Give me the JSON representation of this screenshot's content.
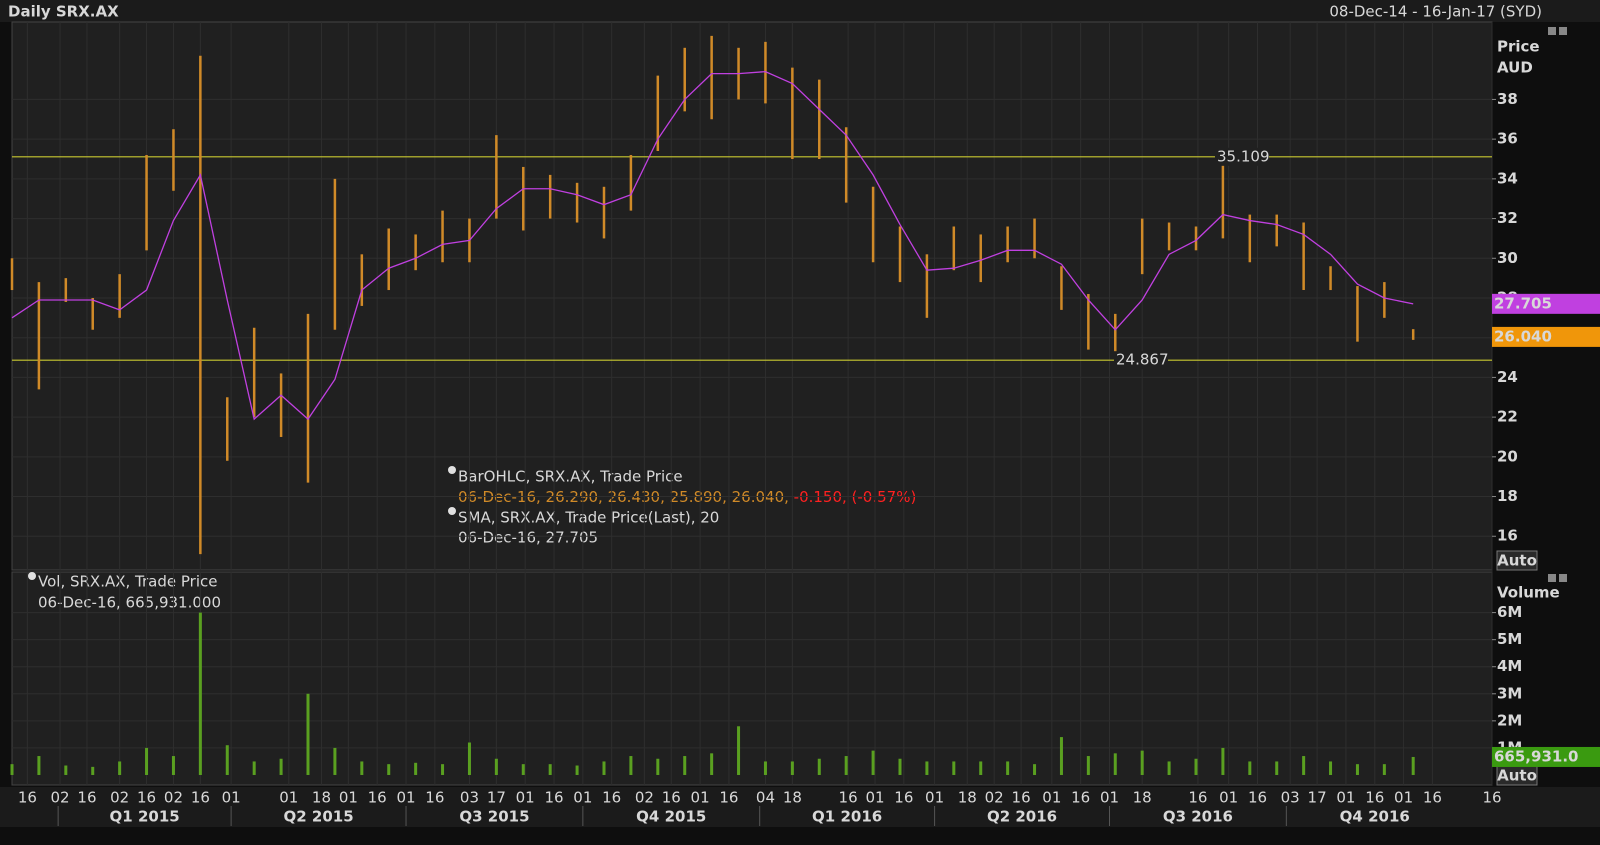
{
  "header": {
    "title": "Daily SRX.AX",
    "range": "08-Dec-14 - 16-Jan-17 (SYD)"
  },
  "chart_data": [
    {
      "type": "ohlc",
      "y_title": "Price",
      "y_unit": "AUD",
      "x": [
        "2014-12-08",
        "2014-12-22",
        "2015-01-05",
        "2015-01-19",
        "2015-02-02",
        "2015-02-16",
        "2015-03-02",
        "2015-03-16",
        "2015-03-30",
        "2015-04-13",
        "2015-04-27",
        "2015-05-11",
        "2015-05-25",
        "2015-06-08",
        "2015-06-22",
        "2015-07-06",
        "2015-07-20",
        "2015-08-03",
        "2015-08-17",
        "2015-08-31",
        "2015-09-14",
        "2015-09-28",
        "2015-10-12",
        "2015-10-26",
        "2015-11-09",
        "2015-11-23",
        "2015-12-07",
        "2015-12-21",
        "2016-01-04",
        "2016-01-18",
        "2016-02-01",
        "2016-02-15",
        "2016-02-29",
        "2016-03-14",
        "2016-03-28",
        "2016-04-11",
        "2016-04-25",
        "2016-05-09",
        "2016-05-23",
        "2016-06-06",
        "2016-06-20",
        "2016-07-04",
        "2016-07-18",
        "2016-08-01",
        "2016-08-15",
        "2016-08-29",
        "2016-09-12",
        "2016-09-26",
        "2016-10-10",
        "2016-10-24",
        "2016-11-07",
        "2016-11-21",
        "2016-12-06"
      ],
      "series": [
        {
          "name": "BarOHLC, SRX.AX, Trade Price",
          "color": "#d08a28",
          "detail": "06-Dec-16, 26.290, 26.430, 25.890, 26.040, ",
          "change": "-0.150, (-0.57%)",
          "change_color": "#ff2020",
          "high": [
            30.0,
            28.8,
            29.0,
            28.0,
            29.2,
            35.2,
            36.5,
            40.2,
            23.0,
            26.5,
            24.2,
            27.2,
            34.0,
            30.2,
            31.5,
            31.2,
            32.4,
            32.0,
            36.2,
            34.6,
            34.2,
            33.8,
            33.6,
            35.2,
            39.2,
            40.6,
            41.2,
            40.6,
            40.9,
            39.6,
            39.0,
            36.6,
            33.6,
            31.6,
            30.2,
            31.6,
            31.2,
            31.6,
            32.0,
            29.6,
            28.2,
            27.2,
            32.0,
            31.8,
            31.6,
            35.0,
            32.2,
            32.2,
            31.8,
            29.6,
            28.6,
            28.8,
            26.43
          ],
          "low": [
            28.4,
            23.4,
            27.8,
            26.4,
            27.0,
            30.4,
            33.4,
            15.1,
            19.8,
            22.0,
            21.0,
            18.7,
            26.4,
            27.6,
            28.4,
            29.4,
            29.8,
            29.8,
            32.0,
            31.4,
            32.0,
            31.8,
            31.0,
            32.4,
            35.4,
            37.4,
            37.0,
            38.0,
            37.8,
            35.0,
            35.0,
            32.8,
            29.8,
            28.8,
            27.0,
            29.4,
            28.8,
            29.8,
            30.0,
            27.4,
            25.4,
            24.9,
            29.2,
            30.4,
            30.4,
            31.0,
            29.8,
            30.6,
            28.4,
            28.4,
            25.8,
            27.0,
            25.89
          ]
        },
        {
          "name": "SMA, SRX.AX, Trade Price(Last),  20",
          "color": "#c040e0",
          "type": "line",
          "detail": "06-Dec-16, 27.705",
          "values": [
            27.0,
            27.9,
            27.9,
            27.9,
            27.4,
            28.4,
            31.9,
            34.2,
            27.9,
            21.9,
            23.1,
            21.9,
            23.9,
            28.4,
            29.5,
            30.0,
            30.7,
            30.9,
            32.5,
            33.5,
            33.5,
            33.2,
            32.7,
            33.2,
            36.0,
            38.0,
            39.3,
            39.3,
            39.4,
            38.8,
            37.5,
            36.2,
            34.2,
            31.7,
            29.4,
            29.5,
            29.9,
            30.4,
            30.4,
            29.7,
            27.9,
            26.4,
            27.9,
            30.2,
            30.9,
            32.2,
            31.9,
            31.7,
            31.2,
            30.2,
            28.7,
            28.0,
            27.705
          ]
        }
      ],
      "hlines": [
        {
          "value": 35.109,
          "label": "35.109"
        },
        {
          "value": 24.867,
          "label": "24.867"
        }
      ],
      "hline_color": "#c8c830",
      "last_labels": [
        {
          "value": 27.705,
          "label": "27.705",
          "color": "#c040e0"
        },
        {
          "value": 26.04,
          "label": "26.040",
          "color": "#f0960a"
        }
      ],
      "scale_button": "Auto",
      "xlim": [
        "2014-12-08",
        "2017-01-16"
      ],
      "ylim": [
        14.3,
        41.9
      ],
      "yticks": [
        16,
        18,
        20,
        22,
        24,
        26,
        28,
        30,
        32,
        34,
        36,
        38
      ],
      "grid": true
    },
    {
      "type": "bar",
      "y_title": "Volume",
      "x": [
        "2014-12-08",
        "2014-12-22",
        "2015-01-05",
        "2015-01-19",
        "2015-02-02",
        "2015-02-16",
        "2015-03-02",
        "2015-03-16",
        "2015-03-30",
        "2015-04-13",
        "2015-04-27",
        "2015-05-11",
        "2015-05-25",
        "2015-06-08",
        "2015-06-22",
        "2015-07-06",
        "2015-07-20",
        "2015-08-03",
        "2015-08-17",
        "2015-08-31",
        "2015-09-14",
        "2015-09-28",
        "2015-10-12",
        "2015-10-26",
        "2015-11-09",
        "2015-11-23",
        "2015-12-07",
        "2015-12-21",
        "2016-01-04",
        "2016-01-18",
        "2016-02-01",
        "2016-02-15",
        "2016-02-29",
        "2016-03-14",
        "2016-03-28",
        "2016-04-11",
        "2016-04-25",
        "2016-05-09",
        "2016-05-23",
        "2016-06-06",
        "2016-06-20",
        "2016-07-04",
        "2016-07-18",
        "2016-08-01",
        "2016-08-15",
        "2016-08-29",
        "2016-09-12",
        "2016-09-26",
        "2016-10-10",
        "2016-10-24",
        "2016-11-07",
        "2016-11-21",
        "2016-12-06"
      ],
      "series": [
        {
          "name": "Vol, SRX.AX, Trade Price",
          "color": "#5aa020",
          "detail": "06-Dec-16, 665,931.000",
          "values": [
            400000,
            700000,
            350000,
            300000,
            500000,
            1000000,
            700000,
            6000000,
            1100000,
            500000,
            600000,
            3000000,
            1000000,
            500000,
            400000,
            450000,
            400000,
            1200000,
            600000,
            400000,
            400000,
            350000,
            500000,
            700000,
            600000,
            700000,
            800000,
            1800000,
            500000,
            500000,
            600000,
            700000,
            900000,
            600000,
            500000,
            500000,
            500000,
            500000,
            400000,
            1400000,
            700000,
            800000,
            900000,
            500000,
            600000,
            1000000,
            500000,
            500000,
            700000,
            500000,
            400000,
            400000,
            665931
          ]
        }
      ],
      "last_labels": [
        {
          "value": 665931,
          "label": "665,931.0",
          "color": "#3a9a10"
        }
      ],
      "scale_button": "Auto",
      "xlim": [
        "2014-12-08",
        "2017-01-16"
      ],
      "ylim": [
        -370000,
        7500000
      ],
      "yticks": [
        {
          "value": 1000000,
          "label": "1M"
        },
        {
          "value": 2000000,
          "label": "2M"
        },
        {
          "value": 3000000,
          "label": "3M"
        },
        {
          "value": 4000000,
          "label": "4M"
        },
        {
          "value": 5000000,
          "label": "5M"
        },
        {
          "value": 6000000,
          "label": "6M"
        }
      ],
      "xticks": [
        {
          "value": "2014-12-16",
          "label": "16"
        },
        {
          "value": "2015-01-02",
          "label": "02"
        },
        {
          "value": "2015-01-16",
          "label": "16"
        },
        {
          "value": "2015-02-02",
          "label": "02"
        },
        {
          "value": "2015-02-16",
          "label": "16"
        },
        {
          "value": "2015-03-02",
          "label": "02"
        },
        {
          "value": "2015-03-16",
          "label": "16"
        },
        {
          "value": "2015-04-01",
          "label": "01"
        },
        {
          "value": "2015-05-01",
          "label": "01"
        },
        {
          "value": "2015-05-18",
          "label": "18"
        },
        {
          "value": "2015-06-01",
          "label": "01"
        },
        {
          "value": "2015-06-16",
          "label": "16"
        },
        {
          "value": "2015-07-01",
          "label": "01"
        },
        {
          "value": "2015-07-16",
          "label": "16"
        },
        {
          "value": "2015-08-03",
          "label": "03"
        },
        {
          "value": "2015-08-17",
          "label": "17"
        },
        {
          "value": "2015-09-01",
          "label": "01"
        },
        {
          "value": "2015-09-16",
          "label": "16"
        },
        {
          "value": "2015-10-01",
          "label": "01"
        },
        {
          "value": "2015-10-16",
          "label": "16"
        },
        {
          "value": "2015-11-02",
          "label": "02"
        },
        {
          "value": "2015-11-16",
          "label": "16"
        },
        {
          "value": "2015-12-01",
          "label": "01"
        },
        {
          "value": "2015-12-16",
          "label": "16"
        },
        {
          "value": "2016-01-04",
          "label": "04"
        },
        {
          "value": "2016-01-18",
          "label": "18"
        },
        {
          "value": "2016-02-16",
          "label": "16"
        },
        {
          "value": "2016-03-01",
          "label": "01"
        },
        {
          "value": "2016-03-16",
          "label": "16"
        },
        {
          "value": "2016-04-01",
          "label": "01"
        },
        {
          "value": "2016-04-18",
          "label": "18"
        },
        {
          "value": "2016-05-02",
          "label": "02"
        },
        {
          "value": "2016-05-16",
          "label": "16"
        },
        {
          "value": "2016-06-01",
          "label": "01"
        },
        {
          "value": "2016-06-16",
          "label": "16"
        },
        {
          "value": "2016-07-01",
          "label": "01"
        },
        {
          "value": "2016-07-18",
          "label": "18"
        },
        {
          "value": "2016-08-16",
          "label": "16"
        },
        {
          "value": "2016-09-01",
          "label": "01"
        },
        {
          "value": "2016-09-16",
          "label": "16"
        },
        {
          "value": "2016-10-03",
          "label": "03"
        },
        {
          "value": "2016-10-17",
          "label": "17"
        },
        {
          "value": "2016-11-01",
          "label": "01"
        },
        {
          "value": "2016-11-16",
          "label": "16"
        },
        {
          "value": "2016-12-01",
          "label": "01"
        },
        {
          "value": "2016-12-16",
          "label": "16"
        },
        {
          "value": "2017-01-16",
          "label": "16"
        }
      ],
      "quarters": [
        {
          "value": "2015-01-01",
          "label": "Q1 2015"
        },
        {
          "value": "2015-04-01",
          "label": "Q2 2015"
        },
        {
          "value": "2015-07-01",
          "label": "Q3 2015"
        },
        {
          "value": "2015-10-01",
          "label": "Q4 2015"
        },
        {
          "value": "2016-01-01",
          "label": "Q1 2016"
        },
        {
          "value": "2016-04-01",
          "label": "Q2 2016"
        },
        {
          "value": "2016-07-01",
          "label": "Q3 2016"
        },
        {
          "value": "2016-10-01",
          "label": "Q4 2016"
        }
      ],
      "grid": true
    }
  ]
}
